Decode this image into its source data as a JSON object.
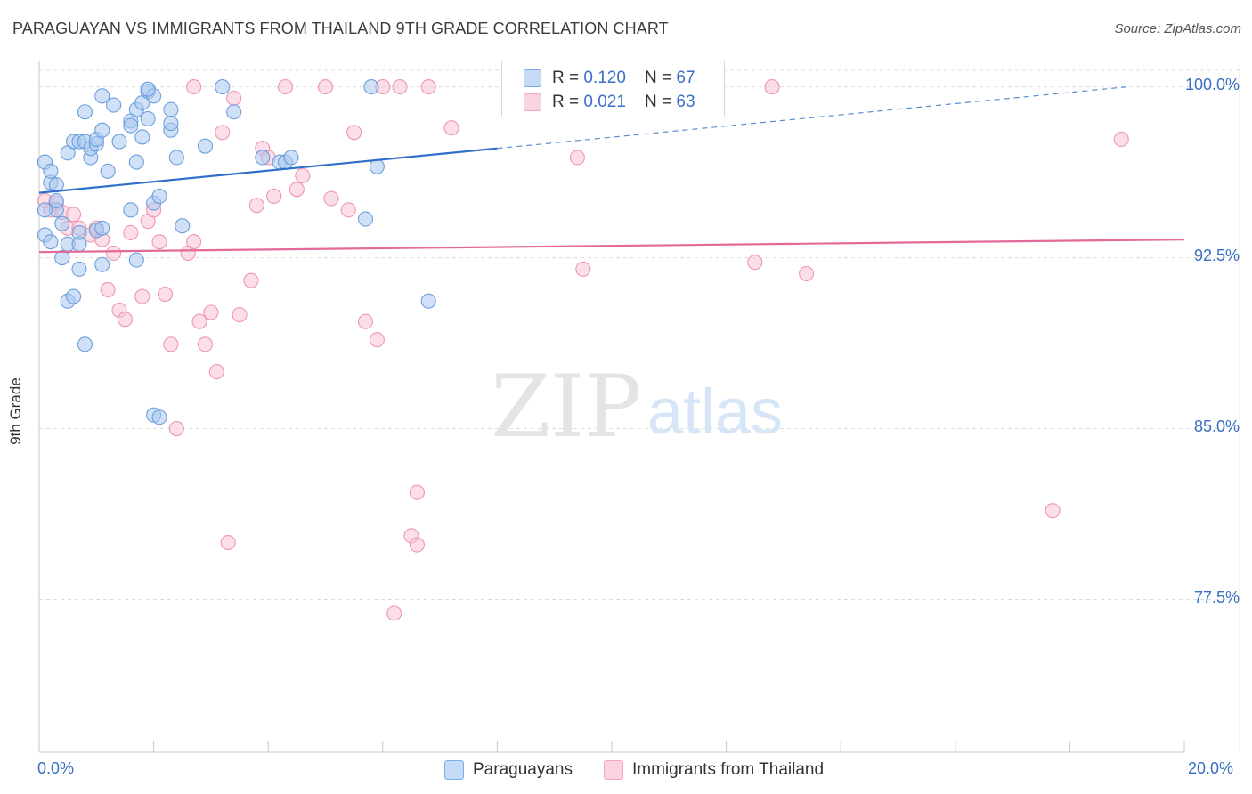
{
  "title": "PARAGUAYAN VS IMMIGRANTS FROM THAILAND 9TH GRADE CORRELATION CHART",
  "source": "Source: ZipAtlas.com",
  "watermark": {
    "zip": "ZIP",
    "atlas": "atlas"
  },
  "legend_top": {
    "rows": [
      {
        "r_label": "R = ",
        "r_value": "0.120",
        "n_label": "N = ",
        "n_value": "67",
        "color": "#7aaee8"
      },
      {
        "r_label": "R = ",
        "r_value": "0.021",
        "n_label": "N = ",
        "n_value": "63",
        "color": "#f4a6bf"
      }
    ]
  },
  "legend_bottom": [
    {
      "label": "Paraguayans",
      "color": "#7aaee8"
    },
    {
      "label": "Immigrants from Thailand",
      "color": "#f4a6bf"
    }
  ],
  "colors": {
    "blue_fill": "#a9c8f0",
    "blue_stroke": "#6d9fdc",
    "blue_line": "#2f6fcb",
    "pink_fill": "#f8c3d3",
    "pink_stroke": "#ee97b3",
    "pink_line": "#e2699a",
    "tick_text": "#3a6fc4",
    "grid": "#dddddd"
  },
  "chart_data": {
    "type": "scatter",
    "title": "PARAGUAYAN VS IMMIGRANTS FROM THAILAND 9TH GRADE CORRELATION CHART",
    "xlabel": "",
    "ylabel": "9th Grade",
    "xlim": [
      0,
      20
    ],
    "ylim": [
      70.8,
      101.0
    ],
    "x_tick_labels": [
      "0.0%",
      "20.0%"
    ],
    "y_ticks": [
      100.0,
      92.5,
      85.0,
      77.5
    ],
    "y_tick_labels": [
      "100.0%",
      "92.5%",
      "85.0%",
      "77.5%"
    ],
    "grid": true,
    "legend_position": "top-center and bottom",
    "series": [
      {
        "name": "Paraguayans",
        "R": 0.12,
        "N": 67,
        "trend": {
          "x0": 0.0,
          "y0": 95.35,
          "x1": 8.0,
          "y1": 97.3,
          "dashed_to_x": 19.0,
          "dashed_to_y": 100.0
        },
        "points": [
          [
            0.1,
            96.7
          ],
          [
            0.1,
            93.5
          ],
          [
            0.2,
            95.8
          ],
          [
            0.2,
            96.3
          ],
          [
            0.2,
            93.2
          ],
          [
            0.3,
            94.6
          ],
          [
            0.3,
            95.0
          ],
          [
            0.3,
            95.7
          ],
          [
            0.4,
            92.5
          ],
          [
            0.4,
            94.0
          ],
          [
            0.5,
            97.1
          ],
          [
            0.5,
            93.1
          ],
          [
            0.5,
            90.6
          ],
          [
            0.6,
            90.8
          ],
          [
            0.6,
            97.6
          ],
          [
            0.7,
            93.6
          ],
          [
            0.7,
            97.6
          ],
          [
            0.7,
            92.0
          ],
          [
            0.7,
            93.1
          ],
          [
            0.8,
            88.7
          ],
          [
            0.8,
            97.6
          ],
          [
            0.8,
            98.9
          ],
          [
            0.9,
            96.9
          ],
          [
            0.9,
            97.3
          ],
          [
            1.0,
            97.5
          ],
          [
            1.0,
            97.7
          ],
          [
            1.0,
            93.7
          ],
          [
            1.1,
            93.8
          ],
          [
            1.1,
            92.2
          ],
          [
            1.1,
            99.6
          ],
          [
            1.1,
            98.1
          ],
          [
            1.2,
            96.3
          ],
          [
            1.3,
            99.2
          ],
          [
            1.4,
            97.6
          ],
          [
            1.6,
            98.5
          ],
          [
            1.6,
            94.6
          ],
          [
            1.6,
            98.3
          ],
          [
            1.7,
            96.7
          ],
          [
            1.7,
            92.4
          ],
          [
            1.7,
            99.0
          ],
          [
            1.8,
            97.8
          ],
          [
            1.8,
            99.3
          ],
          [
            1.9,
            99.8
          ],
          [
            1.9,
            98.6
          ],
          [
            2.0,
            99.6
          ],
          [
            2.0,
            94.9
          ],
          [
            2.0,
            85.6
          ],
          [
            2.1,
            95.2
          ],
          [
            2.1,
            85.5
          ],
          [
            2.3,
            99.0
          ],
          [
            2.3,
            98.1
          ],
          [
            2.3,
            98.4
          ],
          [
            2.4,
            96.9
          ],
          [
            2.5,
            93.9
          ],
          [
            2.9,
            97.4
          ],
          [
            3.2,
            100.0
          ],
          [
            3.4,
            98.9
          ],
          [
            3.9,
            96.9
          ],
          [
            4.2,
            96.7
          ],
          [
            4.3,
            96.7
          ],
          [
            4.4,
            96.9
          ],
          [
            5.7,
            94.2
          ],
          [
            5.8,
            100.0
          ],
          [
            5.9,
            96.5
          ],
          [
            6.8,
            90.6
          ],
          [
            1.9,
            99.9
          ],
          [
            0.1,
            94.6
          ]
        ]
      },
      {
        "name": "Immigrants from Thailand",
        "R": 0.021,
        "N": 63,
        "trend": {
          "x0": 0.0,
          "y0": 92.75,
          "x1": 20.0,
          "y1": 93.3
        },
        "points": [
          [
            0.1,
            95.0
          ],
          [
            0.2,
            94.6
          ],
          [
            0.3,
            94.9
          ],
          [
            0.4,
            94.5
          ],
          [
            0.5,
            93.8
          ],
          [
            0.6,
            94.4
          ],
          [
            0.7,
            93.8
          ],
          [
            0.9,
            93.5
          ],
          [
            1.0,
            93.8
          ],
          [
            1.1,
            93.3
          ],
          [
            1.2,
            91.1
          ],
          [
            1.3,
            92.7
          ],
          [
            1.4,
            90.2
          ],
          [
            1.5,
            89.8
          ],
          [
            1.6,
            93.6
          ],
          [
            1.8,
            90.8
          ],
          [
            1.9,
            94.1
          ],
          [
            2.0,
            94.6
          ],
          [
            2.1,
            93.2
          ],
          [
            2.2,
            90.9
          ],
          [
            2.3,
            88.7
          ],
          [
            2.4,
            85.0
          ],
          [
            2.6,
            92.7
          ],
          [
            2.7,
            93.2
          ],
          [
            2.8,
            89.7
          ],
          [
            2.9,
            88.7
          ],
          [
            3.0,
            90.1
          ],
          [
            3.1,
            87.5
          ],
          [
            3.2,
            98.0
          ],
          [
            3.3,
            80.0
          ],
          [
            3.4,
            99.5
          ],
          [
            3.5,
            90.0
          ],
          [
            3.7,
            91.5
          ],
          [
            3.8,
            94.8
          ],
          [
            3.9,
            97.3
          ],
          [
            4.0,
            96.9
          ],
          [
            4.1,
            95.2
          ],
          [
            4.3,
            100.0
          ],
          [
            4.5,
            95.5
          ],
          [
            4.6,
            96.1
          ],
          [
            5.0,
            100.0
          ],
          [
            5.1,
            95.1
          ],
          [
            5.4,
            94.6
          ],
          [
            5.5,
            98.0
          ],
          [
            5.7,
            89.7
          ],
          [
            5.9,
            88.9
          ],
          [
            6.0,
            100.0
          ],
          [
            6.2,
            76.9
          ],
          [
            6.3,
            100.0
          ],
          [
            6.5,
            80.3
          ],
          [
            6.6,
            79.9
          ],
          [
            6.6,
            82.2
          ],
          [
            6.8,
            100.0
          ],
          [
            7.2,
            98.2
          ],
          [
            9.4,
            96.9
          ],
          [
            9.5,
            92.0
          ],
          [
            10.1,
            100.0
          ],
          [
            12.5,
            92.3
          ],
          [
            12.8,
            100.0
          ],
          [
            13.4,
            91.8
          ],
          [
            17.7,
            81.4
          ],
          [
            18.9,
            97.7
          ],
          [
            2.7,
            100.0
          ]
        ]
      }
    ]
  }
}
